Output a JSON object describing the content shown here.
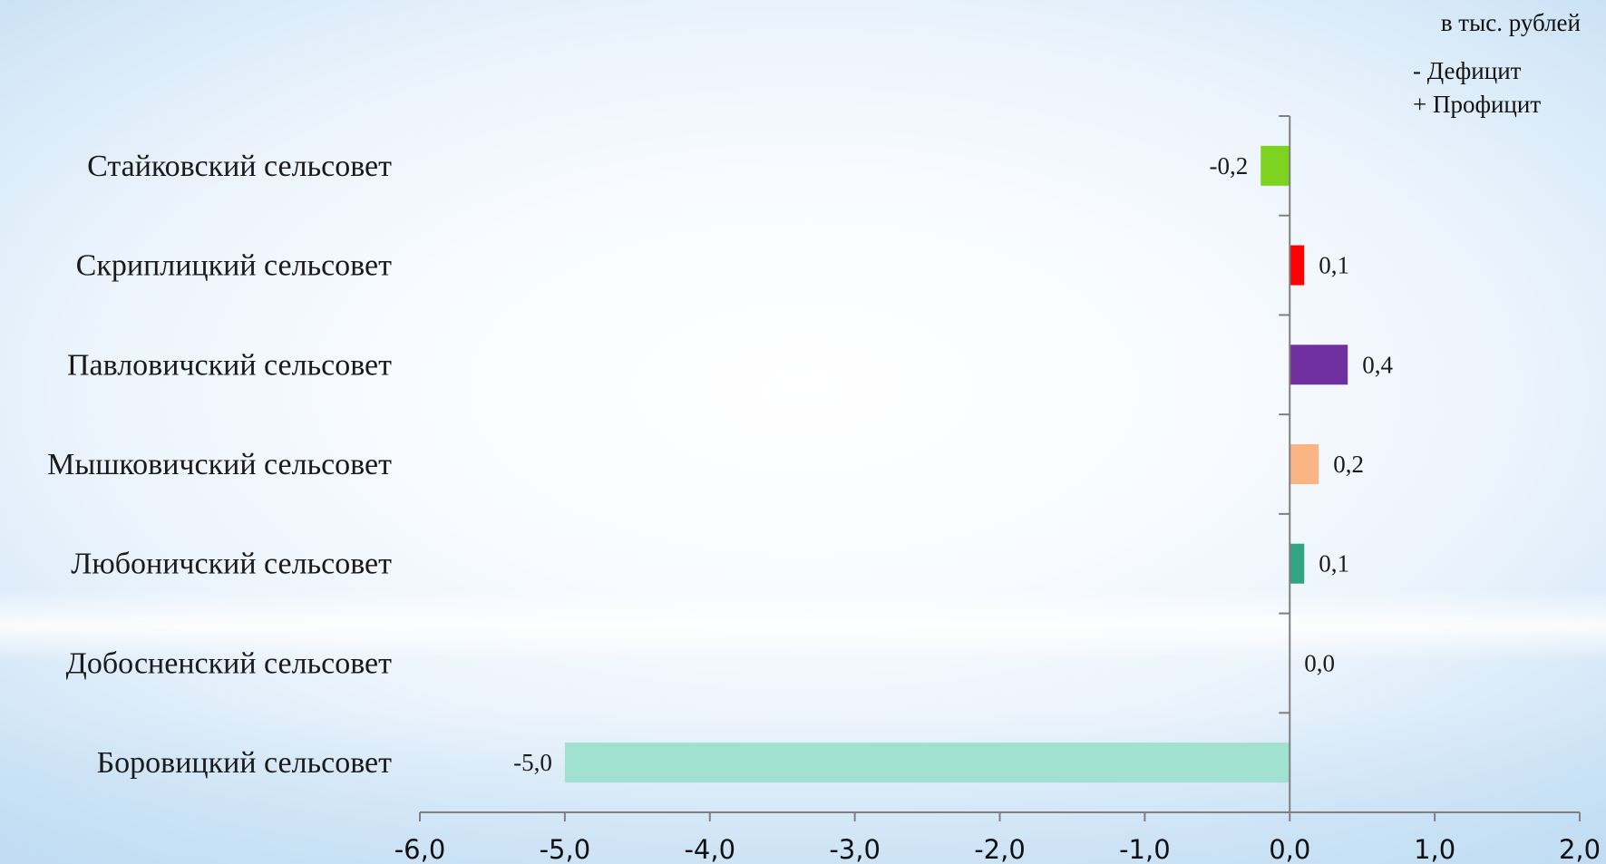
{
  "unit_note": "в тыс. рублей",
  "legend_notes": [
    "- Дефицит",
    "+ Профицит"
  ],
  "chart_data": {
    "type": "bar",
    "orientation": "horizontal",
    "title": "",
    "xlabel": "",
    "ylabel": "",
    "categories": [
      "Стайковский сельсовет",
      "Скриплицкий сельсовет",
      "Павловичский сельсовет",
      "Мышковичский сельсовет",
      "Любоничский сельсовет",
      "Добосненский сельсовет",
      "Боровицкий сельсовет"
    ],
    "values": [
      -0.2,
      0.1,
      0.4,
      0.2,
      0.1,
      0.0,
      -5.0
    ],
    "value_labels": [
      "-0,2",
      "0,1",
      "0,4",
      "0,2",
      "0,1",
      "0,0",
      "-5,0"
    ],
    "bar_colors": [
      "#7ed321",
      "#ff0000",
      "#7030a0",
      "#fbb483",
      "#33a386",
      "#b4e6d8",
      "#a1e1d0"
    ],
    "xlim": [
      -6.0,
      2.0
    ],
    "ticks": [
      -6.0,
      -5.0,
      -4.0,
      -3.0,
      -2.0,
      -1.0,
      0.0,
      1.0,
      2.0
    ],
    "tick_labels": [
      "-6,0",
      "-5,0",
      "-4,0",
      "-3,0",
      "-2,0",
      "-1,0",
      "0,0",
      "1,0",
      "2,0"
    ],
    "grid": false,
    "legend": "none"
  }
}
